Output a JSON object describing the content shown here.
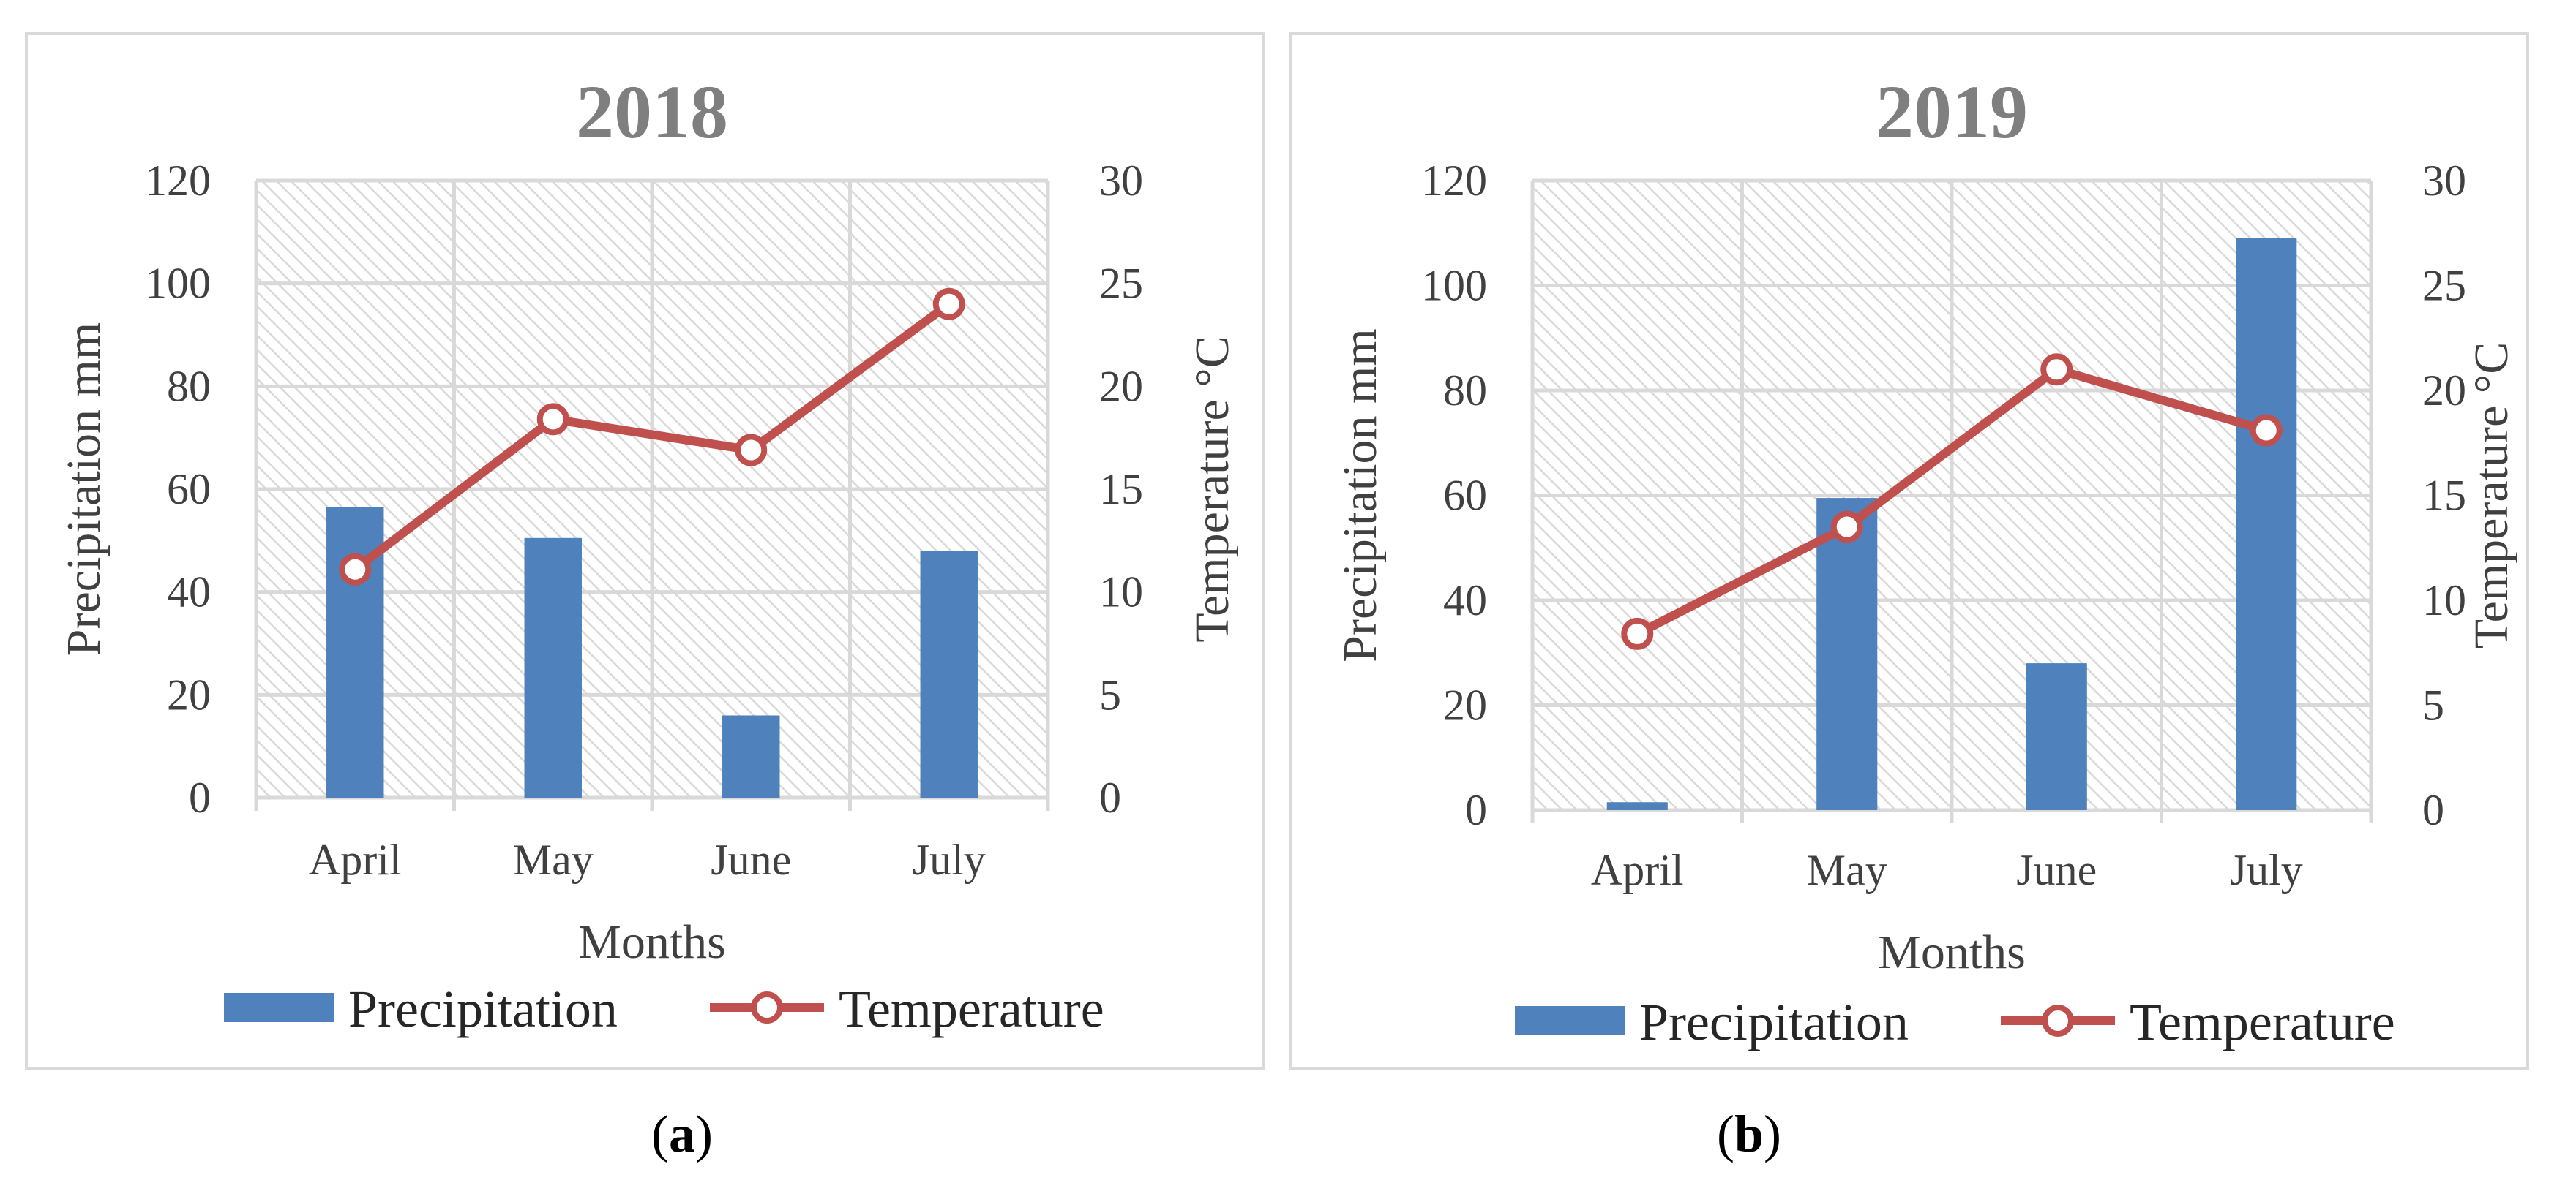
{
  "chart_data": [
    {
      "type": "bar",
      "title": "2018",
      "categories": [
        "April",
        "May",
        "June",
        "July"
      ],
      "xlabel": "Months",
      "ylabel": "Precipitation mm",
      "y2label": "Temperature °C",
      "ylim": [
        0,
        120
      ],
      "y2lim": [
        0,
        30
      ],
      "yticks": [
        0,
        20,
        40,
        60,
        80,
        100,
        120
      ],
      "y2ticks": [
        0,
        5,
        10,
        15,
        20,
        25,
        30
      ],
      "grid": true,
      "legend_position": "bottom",
      "series": [
        {
          "name": "Precipitation",
          "type": "bar",
          "axis": "left",
          "color": "#4f81bd",
          "values": [
            56.5,
            50.5,
            16,
            48
          ]
        },
        {
          "name": "Temperature",
          "type": "line",
          "axis": "right",
          "color": "#c0504d",
          "values": [
            11.1,
            18.4,
            16.9,
            24.0
          ]
        }
      ]
    },
    {
      "type": "bar",
      "title": "2019",
      "categories": [
        "April",
        "May",
        "June",
        "July"
      ],
      "xlabel": "Months",
      "ylabel": "Precipitation mm",
      "y2label": "Temperature °C",
      "ylim": [
        0,
        120
      ],
      "y2lim": [
        0,
        30
      ],
      "yticks": [
        0,
        20,
        40,
        60,
        80,
        100,
        120
      ],
      "y2ticks": [
        0,
        5,
        10,
        15,
        20,
        25,
        30
      ],
      "grid": true,
      "legend_position": "bottom",
      "series": [
        {
          "name": "Precipitation",
          "type": "bar",
          "axis": "left",
          "color": "#4f81bd",
          "values": [
            1.5,
            59.5,
            28,
            109
          ]
        },
        {
          "name": "Temperature",
          "type": "line",
          "axis": "right",
          "color": "#c0504d",
          "values": [
            8.4,
            13.5,
            21.0,
            18.1
          ]
        }
      ]
    }
  ],
  "panel_labels": [
    "a",
    "b"
  ]
}
